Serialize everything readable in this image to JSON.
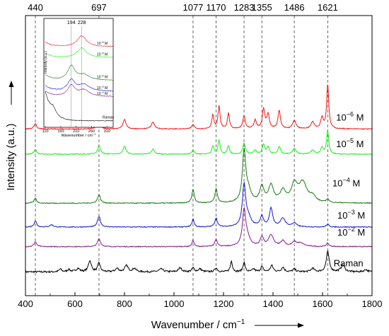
{
  "chart_data": {
    "type": "line",
    "title": "",
    "xlabel": "Wavenumber / cm",
    "xlabel_sup": "−1",
    "ylabel": "Intensity (a.u.)",
    "xlim": [
      400,
      1800
    ],
    "xticks": [
      400,
      600,
      800,
      1000,
      1200,
      1400,
      1600,
      1800
    ],
    "ylim": [
      0,
      1.0
    ],
    "grid": false,
    "legend": "none",
    "peak_markers": [
      440,
      697,
      1077,
      1170,
      1283,
      1355,
      1486,
      1621
    ],
    "series": [
      {
        "name": "Raman",
        "label_text": "Raman",
        "label_sup": "",
        "color": "#000000",
        "baseline": 0.085,
        "label_x": 1645,
        "label_y": 0.105,
        "noise": 0.006,
        "peaks": [
          [
            541,
            0.01,
            6
          ],
          [
            575,
            0.008,
            7
          ],
          [
            612,
            0.012,
            8
          ],
          [
            660,
            0.04,
            7
          ],
          [
            697,
            0.032,
            6
          ],
          [
            770,
            0.012,
            8
          ],
          [
            808,
            0.022,
            8
          ],
          [
            840,
            0.012,
            8
          ],
          [
            948,
            0.01,
            10
          ],
          [
            1025,
            0.014,
            8
          ],
          [
            1077,
            0.014,
            6
          ],
          [
            1105,
            0.01,
            8
          ],
          [
            1170,
            0.014,
            6
          ],
          [
            1232,
            0.038,
            5
          ],
          [
            1283,
            0.034,
            5
          ],
          [
            1322,
            0.01,
            6
          ],
          [
            1355,
            0.018,
            6
          ],
          [
            1395,
            0.022,
            7
          ],
          [
            1440,
            0.016,
            7
          ],
          [
            1486,
            0.01,
            7
          ],
          [
            1560,
            0.012,
            8
          ],
          [
            1621,
            0.072,
            7
          ],
          [
            1682,
            0.024,
            9
          ],
          [
            1775,
            0.008,
            8
          ]
        ]
      },
      {
        "name": "10^-2 M",
        "label_text": "10",
        "label_sup": "−2",
        "label_unit": " M",
        "color": "#8b1a8b",
        "baseline": 0.175,
        "label_x": 1660,
        "label_y": 0.215,
        "noise": 0.003,
        "peaks": [
          [
            440,
            0.018,
            6
          ],
          [
            697,
            0.028,
            7
          ],
          [
            1077,
            0.022,
            5
          ],
          [
            1170,
            0.026,
            6
          ],
          [
            1283,
            0.12,
            8
          ],
          [
            1295,
            0.03,
            14
          ],
          [
            1355,
            0.032,
            8
          ],
          [
            1392,
            0.04,
            12
          ],
          [
            1440,
            0.02,
            10
          ],
          [
            1486,
            0.014,
            10
          ],
          [
            1510,
            0.012,
            18
          ],
          [
            1621,
            0.012,
            6
          ]
        ]
      },
      {
        "name": "10^-3 M",
        "label_text": "10",
        "label_sup": "−3",
        "label_unit": " M",
        "color": "#1a1acc",
        "baseline": 0.245,
        "label_x": 1660,
        "label_y": 0.275,
        "noise": 0.003,
        "peaks": [
          [
            440,
            0.022,
            6
          ],
          [
            505,
            0.008,
            8
          ],
          [
            697,
            0.038,
            7
          ],
          [
            1077,
            0.028,
            5
          ],
          [
            1170,
            0.032,
            6
          ],
          [
            1283,
            0.145,
            8
          ],
          [
            1300,
            0.03,
            14
          ],
          [
            1355,
            0.036,
            8
          ],
          [
            1392,
            0.065,
            8
          ],
          [
            1440,
            0.03,
            12
          ],
          [
            1486,
            0.014,
            10
          ],
          [
            1621,
            0.01,
            6
          ]
        ]
      },
      {
        "name": "10^-4 M",
        "label_text": "10",
        "label_sup": "−4",
        "label_unit": " M",
        "color": "#1a7a1a",
        "baseline": 0.33,
        "label_x": 1640,
        "label_y": 0.39,
        "noise": 0.003,
        "peaks": [
          [
            440,
            0.018,
            6
          ],
          [
            697,
            0.03,
            7
          ],
          [
            1077,
            0.048,
            6
          ],
          [
            1170,
            0.05,
            6
          ],
          [
            1283,
            0.18,
            8
          ],
          [
            1300,
            0.04,
            14
          ],
          [
            1355,
            0.055,
            10
          ],
          [
            1392,
            0.06,
            12
          ],
          [
            1440,
            0.04,
            14
          ],
          [
            1486,
            0.06,
            14
          ],
          [
            1520,
            0.07,
            20
          ],
          [
            1560,
            0.02,
            14
          ],
          [
            1621,
            0.012,
            6
          ]
        ]
      },
      {
        "name": "10^-5 M",
        "label_text": "10",
        "label_sup": "−5",
        "label_unit": " M",
        "color": "#1aee1a",
        "baseline": 0.505,
        "label_x": 1655,
        "label_y": 0.53,
        "noise": 0.003,
        "peaks": [
          [
            440,
            0.018,
            6
          ],
          [
            697,
            0.03,
            7
          ],
          [
            800,
            0.028,
            7
          ],
          [
            915,
            0.018,
            8
          ],
          [
            1077,
            0.014,
            6
          ],
          [
            1157,
            0.03,
            5
          ],
          [
            1182,
            0.05,
            5
          ],
          [
            1220,
            0.03,
            5
          ],
          [
            1283,
            0.04,
            6
          ],
          [
            1328,
            0.014,
            6
          ],
          [
            1362,
            0.034,
            6
          ],
          [
            1380,
            0.024,
            6
          ],
          [
            1425,
            0.028,
            6
          ],
          [
            1486,
            0.02,
            8
          ],
          [
            1560,
            0.014,
            8
          ],
          [
            1598,
            0.024,
            6
          ],
          [
            1621,
            0.085,
            5
          ]
        ]
      },
      {
        "name": "10^-6 M",
        "label_text": "10",
        "label_sup": "−6",
        "label_unit": " M",
        "color": "#ee1a1a",
        "baseline": 0.595,
        "label_x": 1655,
        "label_y": 0.625,
        "noise": 0.003,
        "peaks": [
          [
            440,
            0.02,
            6
          ],
          [
            697,
            0.03,
            7
          ],
          [
            800,
            0.035,
            7
          ],
          [
            915,
            0.024,
            8
          ],
          [
            1077,
            0.016,
            6
          ],
          [
            1157,
            0.05,
            5
          ],
          [
            1182,
            0.08,
            5
          ],
          [
            1220,
            0.055,
            5
          ],
          [
            1283,
            0.045,
            6
          ],
          [
            1328,
            0.03,
            6
          ],
          [
            1362,
            0.07,
            6
          ],
          [
            1380,
            0.05,
            6
          ],
          [
            1425,
            0.065,
            6
          ],
          [
            1486,
            0.03,
            8
          ],
          [
            1560,
            0.026,
            8
          ],
          [
            1598,
            0.04,
            6
          ],
          [
            1621,
            0.16,
            5
          ]
        ]
      }
    ],
    "inset": {
      "xlabel": "Wavenumber / cm",
      "xlabel_sup": "−1",
      "ylabel": "Intensity (a.u.)",
      "xlim": [
        105,
        330
      ],
      "xticks": [
        110,
        160,
        210,
        260,
        310
      ],
      "peak_markers": [
        194,
        228
      ],
      "series": [
        {
          "label_text": "Raman",
          "label_sup": "",
          "color": "#000000",
          "baseline": 0.06,
          "decay": 0.26,
          "peaks": [
            [
              135,
              0.06,
              10
            ]
          ]
        },
        {
          "label_text": "10",
          "label_sup": "−2",
          "label_unit": " M",
          "color": "#8b1a8b",
          "baseline": 0.28,
          "decay": 0.05,
          "peaks": [
            [
              194,
              0.1,
              14
            ],
            [
              235,
              0.06,
              22
            ]
          ]
        },
        {
          "label_text": "10",
          "label_sup": "−3",
          "label_unit": " M",
          "color": "#1a1acc",
          "baseline": 0.33,
          "decay": 0.05,
          "peaks": [
            [
              194,
              0.1,
              14
            ],
            [
              235,
              0.06,
              22
            ]
          ]
        },
        {
          "label_text": "10",
          "label_sup": "−4",
          "label_unit": " M",
          "color": "#1a7a1a",
          "baseline": 0.43,
          "decay": 0.05,
          "peaks": [
            [
              194,
              0.13,
              14
            ],
            [
              235,
              0.05,
              22
            ]
          ]
        },
        {
          "label_text": "10",
          "label_sup": "−5",
          "label_unit": " M",
          "color": "#1aee1a",
          "baseline": 0.64,
          "decay": 0.04,
          "peaks": [
            [
              228,
              0.09,
              18
            ]
          ]
        },
        {
          "label_text": "10",
          "label_sup": "−6",
          "label_unit": " M",
          "color": "#ee1a1a",
          "baseline": 0.74,
          "decay": 0.04,
          "peaks": [
            [
              228,
              0.1,
              18
            ]
          ]
        }
      ]
    }
  }
}
